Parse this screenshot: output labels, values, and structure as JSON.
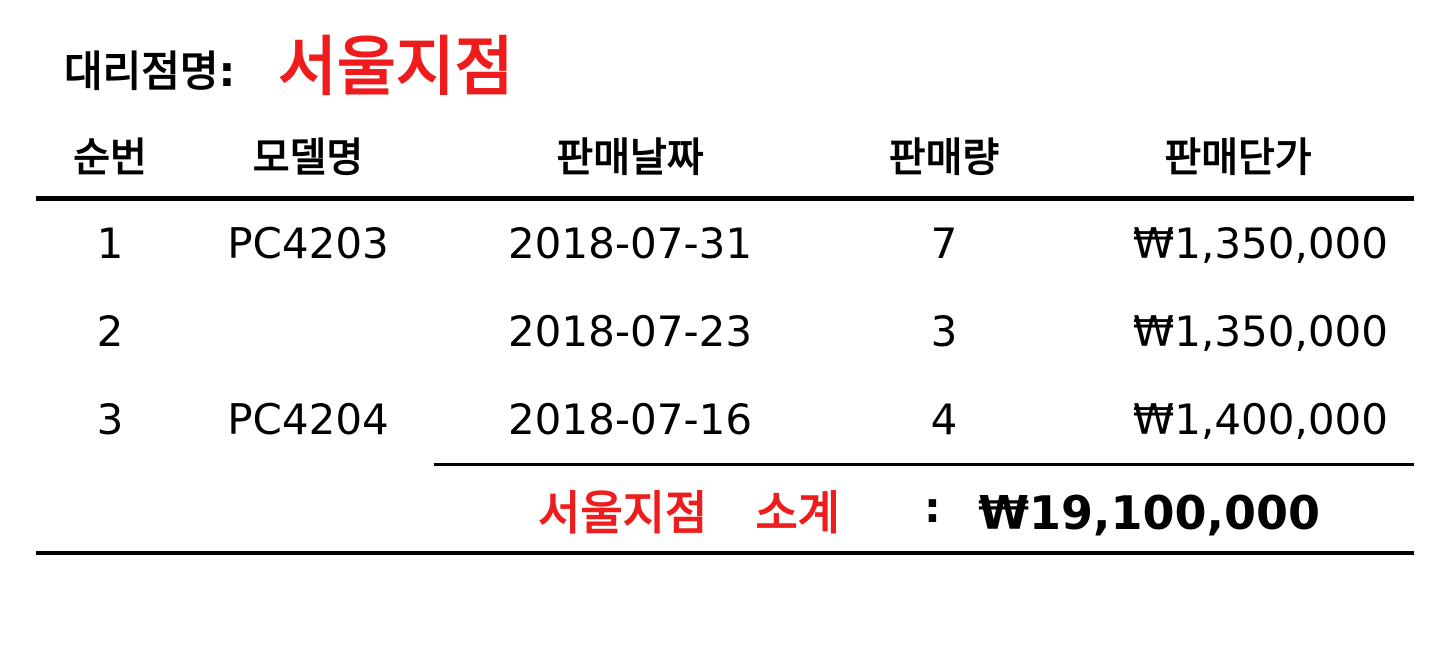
{
  "header": {
    "branch_label": "대리점명:",
    "branch_name": "서울지점"
  },
  "table": {
    "columns": [
      "순번",
      "모델명",
      "판매날짜",
      "판매량",
      "판매단가"
    ],
    "rows": [
      {
        "no": "1",
        "model": "PC4203",
        "date": "2018-07-31",
        "qty": "7",
        "price": "₩1,350,000"
      },
      {
        "no": "2",
        "model": "",
        "date": "2018-07-23",
        "qty": "3",
        "price": "₩1,350,000"
      },
      {
        "no": "3",
        "model": "PC4204",
        "date": "2018-07-16",
        "qty": "4",
        "price": "₩1,400,000"
      }
    ]
  },
  "subtotal": {
    "label": "서울지점   소계",
    "colon": ":",
    "value": "₩19,100,000"
  },
  "colors": {
    "accent": "#ee1c1c",
    "text": "#000000"
  }
}
